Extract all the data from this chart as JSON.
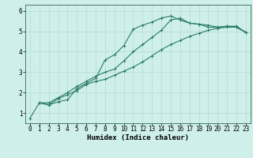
{
  "xlabel": "Humidex (Indice chaleur)",
  "bg_color": "#cff0ea",
  "grid_color": "#b8ddd7",
  "line_color": "#2a7a6a",
  "xlim": [
    -0.5,
    23.5
  ],
  "ylim": [
    0.5,
    6.3
  ],
  "xticks": [
    0,
    1,
    2,
    3,
    4,
    5,
    6,
    7,
    8,
    9,
    10,
    11,
    12,
    13,
    14,
    15,
    16,
    17,
    18,
    19,
    20,
    21,
    22,
    23
  ],
  "yticks": [
    1,
    2,
    3,
    4,
    5,
    6
  ],
  "curve1_x": [
    0,
    1,
    2,
    3,
    4,
    5,
    6,
    7,
    8,
    9,
    10,
    11,
    12,
    13,
    14,
    15,
    16,
    17,
    18,
    19,
    20,
    21,
    22,
    23
  ],
  "curve1_y": [
    0.75,
    1.5,
    1.4,
    1.55,
    1.65,
    2.2,
    2.45,
    2.7,
    3.6,
    3.85,
    4.3,
    5.1,
    5.3,
    5.45,
    5.65,
    5.75,
    5.55,
    5.4,
    5.35,
    5.3,
    5.2,
    5.25,
    5.25,
    4.95
  ],
  "curve2_x": [
    1,
    2,
    3,
    4,
    5,
    6,
    7,
    8,
    9,
    10,
    11,
    12,
    13,
    14,
    15,
    16,
    17,
    18,
    19,
    20,
    21,
    22,
    23
  ],
  "curve2_y": [
    1.5,
    1.4,
    1.7,
    1.9,
    2.1,
    2.4,
    2.55,
    2.65,
    2.85,
    3.05,
    3.25,
    3.5,
    3.8,
    4.1,
    4.35,
    4.55,
    4.75,
    4.9,
    5.05,
    5.15,
    5.2,
    5.2,
    4.95
  ],
  "curve3_x": [
    1,
    2,
    3,
    4,
    5,
    6,
    7,
    8,
    9,
    10,
    11,
    12,
    13,
    14,
    15,
    16,
    17,
    18,
    19,
    20,
    21,
    22,
    23
  ],
  "curve3_y": [
    1.5,
    1.5,
    1.75,
    2.0,
    2.3,
    2.55,
    2.8,
    3.0,
    3.15,
    3.55,
    4.0,
    4.35,
    4.7,
    5.05,
    5.55,
    5.65,
    5.4,
    5.35,
    5.2,
    5.2,
    5.25,
    5.2,
    4.95
  ],
  "tick_fontsize": 5.5,
  "xlabel_fontsize": 6.5
}
